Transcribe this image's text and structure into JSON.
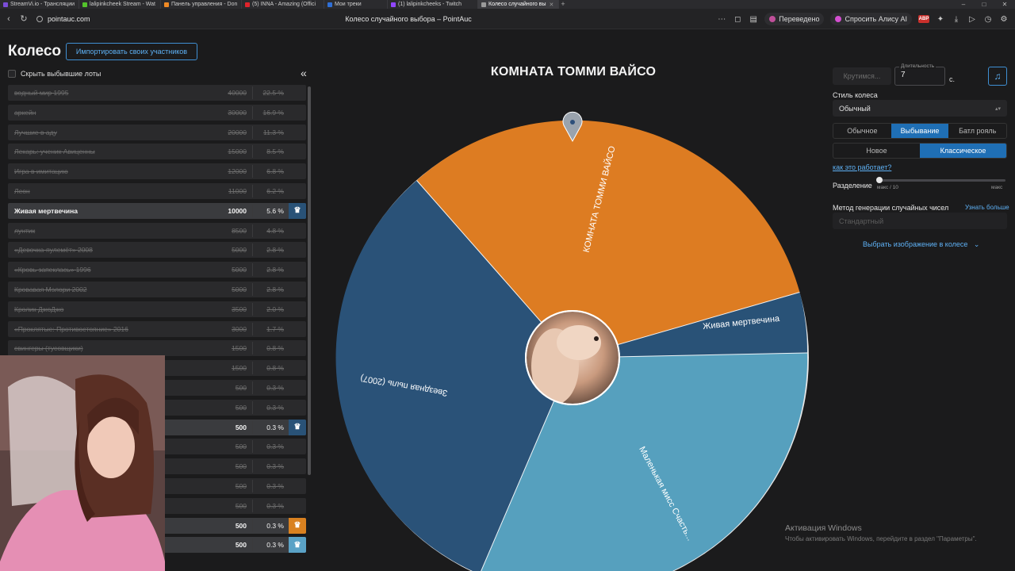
{
  "browser": {
    "tabs": [
      {
        "label": "StreamVi.io - Трансляции",
        "color": "#7b4dd8"
      },
      {
        "label": "lalipinkcheek Stream - Wat",
        "color": "#53c22b"
      },
      {
        "label": "Панель управления - Don",
        "color": "#f08a24"
      },
      {
        "label": "(5) INNA - Amazing (Offici",
        "color": "#e0232b"
      },
      {
        "label": "Мои треки",
        "color": "#2f6fd6"
      },
      {
        "label": "(1) lalipinkcheeks - Twitch",
        "color": "#9146ff"
      },
      {
        "label": "Колесо случайного вы",
        "color": "#9a9a9a"
      }
    ],
    "url": "pointauc.com",
    "page_title": "Колесо случайного выбора – PointAuc",
    "translated_label": "Переведено",
    "ask_alice_label": "Спросить Алису AI",
    "abp_label": "ABP"
  },
  "app": {
    "title": "Колесо",
    "import_button": "Импортировать своих участников",
    "hide_label": "Скрыть выбывшие лоты",
    "collapse_icon": "«",
    "lots": [
      {
        "name": "водный мир 1995",
        "amount": "40000",
        "percent": "22.5 %",
        "active": false
      },
      {
        "name": "аркейн",
        "amount": "30000",
        "percent": "16.9 %",
        "active": false
      },
      {
        "name": "Лучшие в аду",
        "amount": "20000",
        "percent": "11.3 %",
        "active": false
      },
      {
        "name": "Лекарь: ученик Авиценны",
        "amount": "15000",
        "percent": "8.5 %",
        "active": false
      },
      {
        "name": "Игра в имитацию",
        "amount": "12000",
        "percent": "6.8 %",
        "active": false
      },
      {
        "name": "Леон",
        "amount": "11000",
        "percent": "6.2 %",
        "active": false
      },
      {
        "name": "Живая мертвечина",
        "amount": "10000",
        "percent": "5.6 %",
        "active": true,
        "crown": "blue"
      },
      {
        "name": "лунтик",
        "amount": "8500",
        "percent": "4.8 %",
        "active": false
      },
      {
        "name": "«Девочка-пулемёт» 2008",
        "amount": "5000",
        "percent": "2.8 %",
        "active": false
      },
      {
        "name": "«Кровь запеклась» 1996",
        "amount": "5000",
        "percent": "2.8 %",
        "active": false
      },
      {
        "name": "Кровавая Мэлори 2002",
        "amount": "5000",
        "percent": "2.8 %",
        "active": false
      },
      {
        "name": "Кролик ДжоДжо",
        "amount": "3500",
        "percent": "2.0 %",
        "active": false
      },
      {
        "name": "«Проклятые: Противостояние» 2016",
        "amount": "3000",
        "percent": "1.7 %",
        "active": false
      },
      {
        "name": "свингеры (тусовщики)",
        "amount": "1500",
        "percent": "0.8 %",
        "active": false
      },
      {
        "name": "",
        "amount": "1500",
        "percent": "0.8 %",
        "active": false
      },
      {
        "name": "",
        "amount": "500",
        "percent": "0.3 %",
        "active": false
      },
      {
        "name": "",
        "amount": "500",
        "percent": "0.3 %",
        "active": false
      },
      {
        "name": "",
        "amount": "500",
        "percent": "0.3 %",
        "active": true,
        "crown": "blue"
      },
      {
        "name": "",
        "amount": "500",
        "percent": "0.3 %",
        "active": false
      },
      {
        "name": "",
        "amount": "500",
        "percent": "0.3 %",
        "active": false
      },
      {
        "name": "",
        "amount": "500",
        "percent": "0.3 %",
        "active": false
      },
      {
        "name": "",
        "amount": "500",
        "percent": "0.3 %",
        "active": false
      },
      {
        "name": "",
        "amount": "500",
        "percent": "0.3 %",
        "active": true,
        "crown": "orange"
      },
      {
        "name": "",
        "amount": "500",
        "percent": "0.3 %",
        "active": true,
        "crown": "light"
      }
    ],
    "wheel": {
      "winner": "КОМНАТА ТОММИ ВАЙСО",
      "segments": [
        {
          "label": "КОМНАТА ТОММИ ВАЙСО",
          "color": "#dd7c22"
        },
        {
          "label": "Живая мертвечина",
          "color": "#295277"
        },
        {
          "label": "Маленькая мисс Счасть...",
          "color": "#56a0be"
        },
        {
          "label": "Звездная пыль (2007)",
          "color": "#2a5278"
        }
      ]
    },
    "controls": {
      "spin_button": "Крутимся...",
      "duration_label": "Длительность",
      "duration_value": "7",
      "duration_unit": "с.",
      "wheel_style_label": "Стиль колеса",
      "wheel_style_value": "Обычный",
      "mode_options": [
        "Обычное",
        "Выбывание",
        "Батл рояль"
      ],
      "mode_selected": "Выбывание",
      "variant_options": [
        "Новое",
        "Классическое"
      ],
      "variant_selected": "Классическое",
      "how_link": "как это работает?",
      "split_label": "Разделение",
      "split_min": "макс / 10",
      "split_max": "макс",
      "rng_label": "Метод генерации случайных чисел",
      "rng_more": "Узнать больше",
      "rng_value": "Стандартный",
      "image_select": "Выбрать изображение в колесе"
    }
  },
  "os": {
    "activation_title": "Активация Windows",
    "activation_text": "Чтобы активировать Windows, перейдите в раздел \"Параметры\"."
  }
}
